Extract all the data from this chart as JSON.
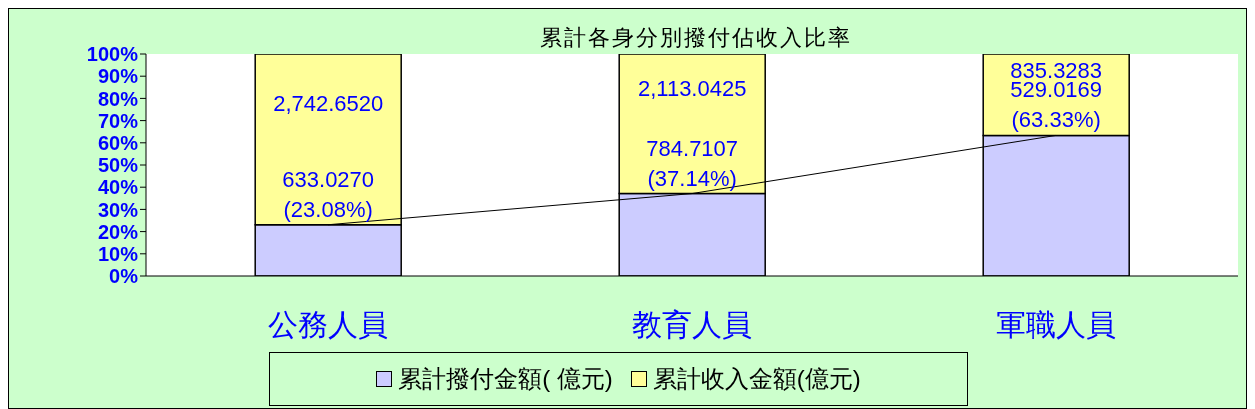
{
  "chart_data": {
    "type": "bar",
    "stacked": true,
    "title": "累計各身分別撥付佔收入比率",
    "categories": [
      "公務人員",
      "教育人員",
      "軍職人員"
    ],
    "series": [
      {
        "name": "累計撥付金額( 億元)",
        "color": "#ccccff",
        "values": [
          23.08,
          37.14,
          63.33
        ],
        "value_labels": [
          "633.0270\n(23.08%)",
          "784.7107\n(37.14%)",
          "529.0169\n(63.33%)"
        ]
      },
      {
        "name": "累計收入金額(億元)",
        "color": "#ffff99",
        "values": [
          76.92,
          62.86,
          36.67
        ]
      },
      {
        "type": "line",
        "color": "#000000",
        "values": [
          23.08,
          37.14,
          63.33
        ],
        "marker": "none"
      }
    ],
    "ylim": [
      0,
      100
    ],
    "yticks": [
      {
        "value": 0,
        "label": "0%"
      },
      {
        "value": 10,
        "label": "10%"
      },
      {
        "value": 20,
        "label": "20%"
      },
      {
        "value": 30,
        "label": "30%"
      },
      {
        "value": 40,
        "label": "40%"
      },
      {
        "value": 50,
        "label": "50%"
      },
      {
        "value": 60,
        "label": "60%"
      },
      {
        "value": 70,
        "label": "70%"
      },
      {
        "value": 80,
        "label": "80%"
      },
      {
        "value": 90,
        "label": "90%"
      },
      {
        "value": 100,
        "label": "100%"
      }
    ],
    "annotations": [
      {
        "text": "2,742.6520",
        "x": "公務人員",
        "y": 100
      },
      {
        "text": "2,113.0425",
        "x": "教育人員",
        "y": 100
      },
      {
        "text": "835.3283",
        "x": "軍職人員",
        "y": 100
      }
    ],
    "grid": false,
    "legend": "bottom"
  }
}
